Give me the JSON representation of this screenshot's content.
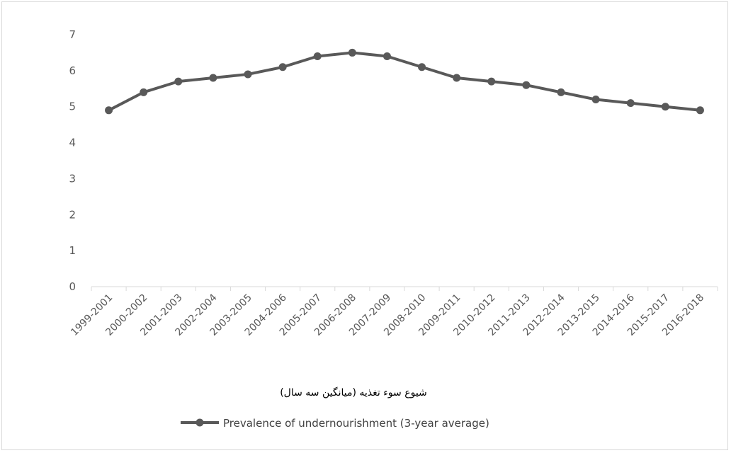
{
  "chart_data": {
    "type": "line",
    "title": "",
    "xlabel": "شیوع سوء تغذیه (میانگین سه سال)",
    "ylabel": "",
    "categories": [
      "1999-2001",
      "2000-2002",
      "2001-2003",
      "2002-2004",
      "2003-2005",
      "2004-2006",
      "2005-2007",
      "2006-2008",
      "2007-2009",
      "2008-2010",
      "2009-2011",
      "2010-2012",
      "2011-2013",
      "2012-2014",
      "2013-2015",
      "2014-2016",
      "2015-2017",
      "2016-2018"
    ],
    "series": [
      {
        "name": "Prevalence of undernourishment (3-year average)",
        "values": [
          4.9,
          5.4,
          5.7,
          5.8,
          5.9,
          6.1,
          6.4,
          6.5,
          6.4,
          6.1,
          5.8,
          5.7,
          5.6,
          5.4,
          5.2,
          5.1,
          5.0,
          4.9
        ],
        "color": "#595959"
      }
    ],
    "ylim": [
      0,
      7
    ],
    "yticks": [
      "0",
      "1",
      "2",
      "3",
      "4",
      "5",
      "6",
      "7"
    ],
    "grid": false,
    "legend": "bottom"
  }
}
